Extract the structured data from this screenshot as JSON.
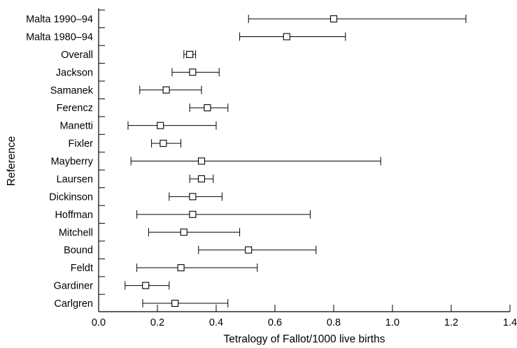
{
  "chart_data": {
    "type": "forest",
    "xlabel": "Tetralogy of Fallot/1000 live births",
    "ylabel": "Reference",
    "xlim": [
      0.0,
      1.4
    ],
    "xticks": [
      "0.0",
      "0.2",
      "0.4",
      "0.6",
      "0.8",
      "1.0",
      "1.2",
      "1.4"
    ],
    "xtick_values": [
      0.0,
      0.2,
      0.4,
      0.6,
      0.8,
      1.0,
      1.2,
      1.4
    ],
    "grid": false,
    "marker": "open-square",
    "rows": [
      {
        "label": "Malta 1990–94",
        "estimate": 0.8,
        "lower": 0.51,
        "upper": 1.25
      },
      {
        "label": "Malta 1980–94",
        "estimate": 0.64,
        "lower": 0.48,
        "upper": 0.84
      },
      {
        "label": "Overall",
        "estimate": 0.31,
        "lower": 0.29,
        "upper": 0.33
      },
      {
        "label": "Jackson",
        "estimate": 0.32,
        "lower": 0.25,
        "upper": 0.41
      },
      {
        "label": "Samanek",
        "estimate": 0.23,
        "lower": 0.14,
        "upper": 0.35
      },
      {
        "label": "Ferencz",
        "estimate": 0.37,
        "lower": 0.31,
        "upper": 0.44
      },
      {
        "label": "Manetti",
        "estimate": 0.21,
        "lower": 0.1,
        "upper": 0.4
      },
      {
        "label": "Fixler",
        "estimate": 0.22,
        "lower": 0.18,
        "upper": 0.28
      },
      {
        "label": "Mayberry",
        "estimate": 0.35,
        "lower": 0.11,
        "upper": 0.96
      },
      {
        "label": "Laursen",
        "estimate": 0.35,
        "lower": 0.31,
        "upper": 0.39
      },
      {
        "label": "Dickinson",
        "estimate": 0.32,
        "lower": 0.24,
        "upper": 0.42
      },
      {
        "label": "Hoffman",
        "estimate": 0.32,
        "lower": 0.13,
        "upper": 0.72
      },
      {
        "label": "Mitchell",
        "estimate": 0.29,
        "lower": 0.17,
        "upper": 0.48
      },
      {
        "label": "Bound",
        "estimate": 0.51,
        "lower": 0.34,
        "upper": 0.74
      },
      {
        "label": "Feldt",
        "estimate": 0.28,
        "lower": 0.13,
        "upper": 0.54
      },
      {
        "label": "Gardiner",
        "estimate": 0.16,
        "lower": 0.09,
        "upper": 0.24
      },
      {
        "label": "Carlgren",
        "estimate": 0.26,
        "lower": 0.15,
        "upper": 0.44
      }
    ]
  }
}
